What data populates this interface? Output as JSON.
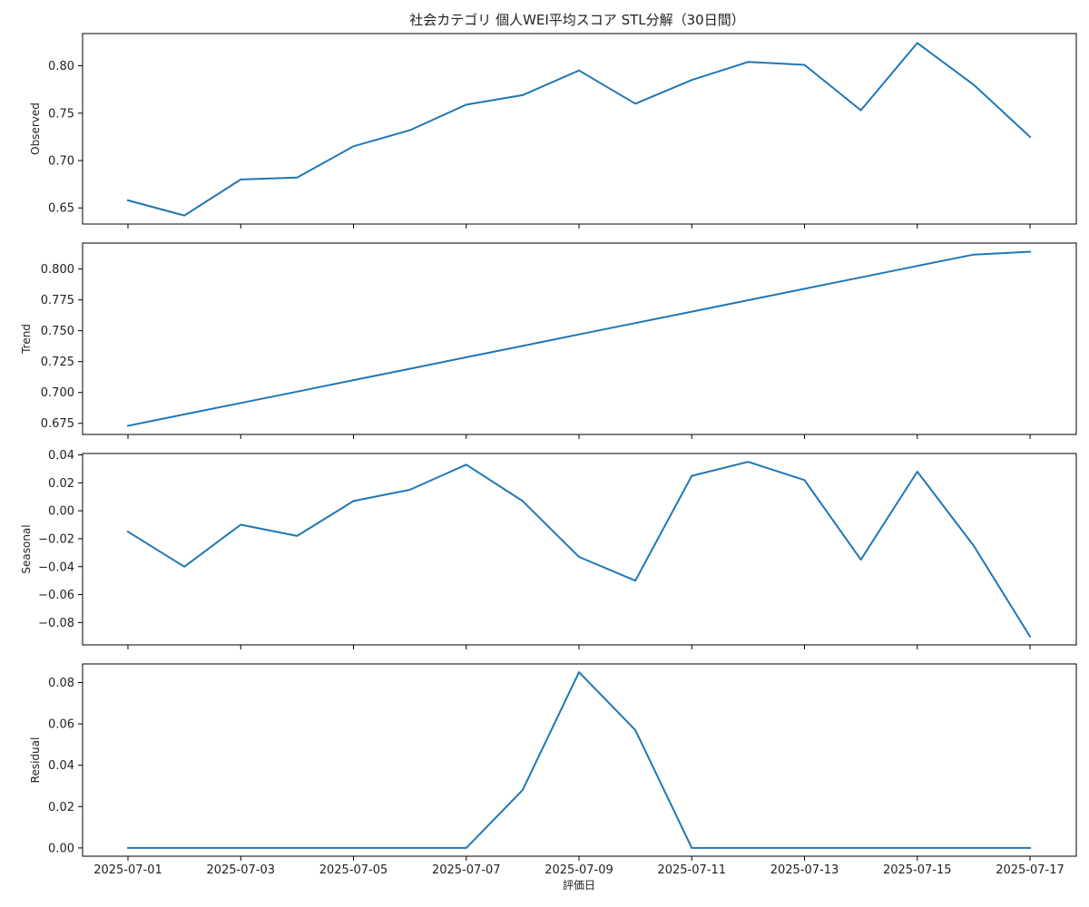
{
  "chart_data": {
    "type": "line",
    "title": "社会カテゴリ 個人WEI平均スコア STL分解（30日間）",
    "xlabel": "評価日",
    "x": [
      "2025-07-01",
      "2025-07-02",
      "2025-07-03",
      "2025-07-04",
      "2025-07-05",
      "2025-07-06",
      "2025-07-07",
      "2025-07-08",
      "2025-07-09",
      "2025-07-10",
      "2025-07-11",
      "2025-07-12",
      "2025-07-13",
      "2025-07-14",
      "2025-07-15",
      "2025-07-16",
      "2025-07-17"
    ],
    "x_ticks": [
      "2025-07-01",
      "2025-07-03",
      "2025-07-05",
      "2025-07-07",
      "2025-07-09",
      "2025-07-11",
      "2025-07-13",
      "2025-07-15",
      "2025-07-17"
    ],
    "panels": [
      {
        "ylabel": "Observed",
        "ylim": [
          0.633,
          0.834
        ],
        "yticks": [
          "0.65",
          "0.70",
          "0.75",
          "0.80"
        ],
        "ytick_values": [
          0.65,
          0.7,
          0.75,
          0.8
        ],
        "values": [
          0.658,
          0.642,
          0.68,
          0.682,
          0.715,
          0.732,
          0.759,
          0.769,
          0.795,
          0.76,
          0.785,
          0.804,
          0.801,
          0.753,
          0.824,
          0.78,
          0.725
        ]
      },
      {
        "ylabel": "Trend",
        "ylim": [
          0.666,
          0.821
        ],
        "yticks": [
          "0.675",
          "0.700",
          "0.725",
          "0.750",
          "0.775",
          "0.800"
        ],
        "ytick_values": [
          0.675,
          0.7,
          0.725,
          0.75,
          0.775,
          0.8
        ],
        "values": [
          0.673,
          0.6822,
          0.6915,
          0.7007,
          0.71,
          0.7192,
          0.7285,
          0.7377,
          0.747,
          0.7562,
          0.7655,
          0.7747,
          0.784,
          0.7932,
          0.8025,
          0.8117,
          0.814
        ]
      },
      {
        "ylabel": "Seasonal",
        "ylim": [
          -0.096,
          0.041
        ],
        "yticks": [
          "−0.08",
          "−0.06",
          "−0.04",
          "−0.02",
          "0.00",
          "0.02",
          "0.04"
        ],
        "ytick_values": [
          -0.08,
          -0.06,
          -0.04,
          -0.02,
          0.0,
          0.02,
          0.04
        ],
        "values": [
          -0.015,
          -0.04,
          -0.01,
          -0.018,
          0.007,
          0.015,
          0.033,
          0.007,
          -0.033,
          -0.05,
          0.025,
          0.035,
          0.022,
          -0.035,
          0.028,
          -0.025,
          -0.09
        ]
      },
      {
        "ylabel": "Residual",
        "ylim": [
          -0.004,
          0.089
        ],
        "yticks": [
          "0.00",
          "0.02",
          "0.04",
          "0.06",
          "0.08"
        ],
        "ytick_values": [
          0.0,
          0.02,
          0.04,
          0.06,
          0.08
        ],
        "values": [
          0,
          0,
          0,
          0,
          0,
          0,
          0,
          0.028,
          0.085,
          0.057,
          0,
          0,
          0,
          0,
          0,
          0,
          0
        ]
      }
    ],
    "line_color": "#1f77b4",
    "grid": false,
    "legend": "none"
  }
}
